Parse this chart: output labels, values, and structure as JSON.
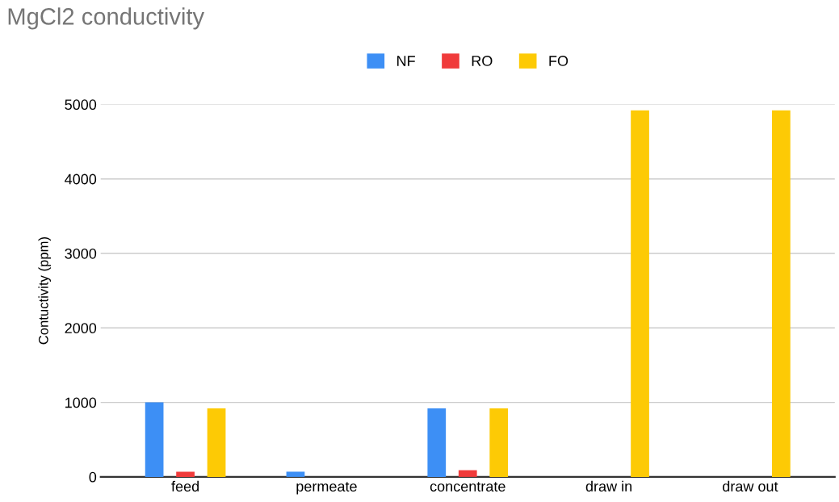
{
  "chart_data": {
    "type": "bar",
    "title": "MgCl2 conductivity",
    "ylabel": "Contuctivity (ppm)",
    "categories": [
      "feed",
      "permeate",
      "concentrate",
      "draw in",
      "draw out"
    ],
    "series": [
      {
        "name": "NF",
        "color": "#3d8ff5",
        "values": [
          1000,
          70,
          920,
          null,
          null
        ]
      },
      {
        "name": "RO",
        "color": "#f03b3b",
        "values": [
          70,
          null,
          90,
          null,
          null
        ]
      },
      {
        "name": "FO",
        "color": "#fdca05",
        "values": [
          920,
          null,
          920,
          4920,
          4920
        ]
      }
    ],
    "ylim": [
      0,
      5000
    ],
    "yticks": [
      0,
      1000,
      2000,
      3000,
      4000,
      5000
    ],
    "grid": "y",
    "legend": "top"
  }
}
